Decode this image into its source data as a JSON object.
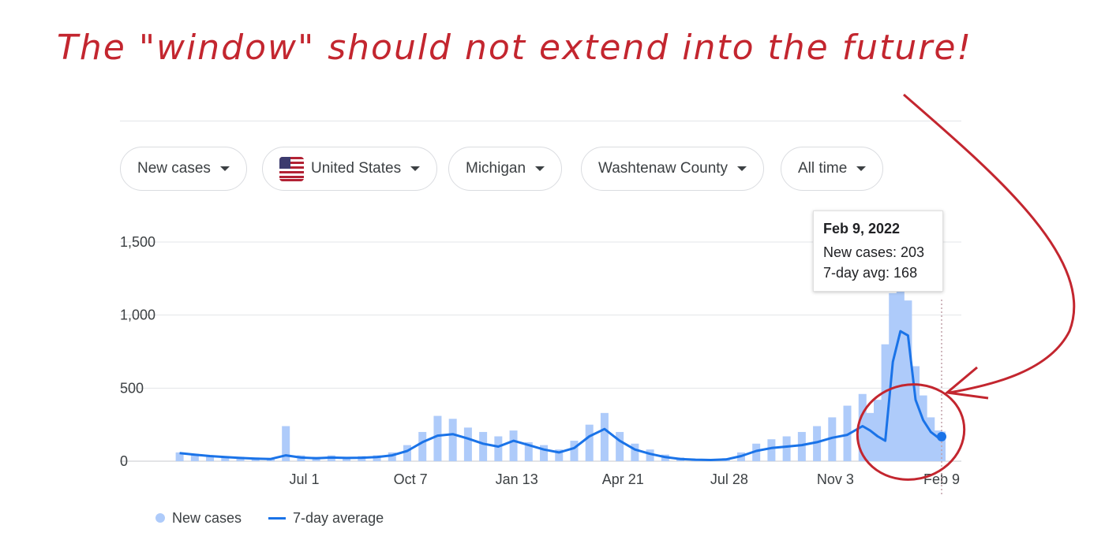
{
  "annotation": {
    "text": "The \"window\" should not extend into the future!",
    "color": "#c3262f"
  },
  "filters": [
    {
      "label": "New cases",
      "name": "filter-metric"
    },
    {
      "label": "United States",
      "name": "filter-country",
      "icon": "us-flag-icon"
    },
    {
      "label": "Michigan",
      "name": "filter-state"
    },
    {
      "label": "Washtenaw County",
      "name": "filter-county"
    },
    {
      "label": "All time",
      "name": "filter-timerange"
    }
  ],
  "tooltip": {
    "date": "Feb 9, 2022",
    "new_cases": "New cases: 203",
    "avg": "7-day avg: 168"
  },
  "legend": {
    "new_cases": "New cases",
    "avg": "7-day average"
  },
  "colors": {
    "bars": "#aecbfa",
    "line": "#1a73e8",
    "annotation": "#c3262f"
  },
  "chart_data": {
    "type": "bar",
    "title": "",
    "xlabel": "",
    "ylabel": "",
    "ylim": [
      0,
      1500
    ],
    "yticks": [
      0,
      500,
      1000,
      1500
    ],
    "ytick_labels": [
      "0",
      "500",
      "1,000",
      "1,500"
    ],
    "x_range": [
      "2020-03-01",
      "2022-02-09"
    ],
    "xticks": [
      {
        "date": "2020-07-01",
        "label": "Jul 1"
      },
      {
        "date": "2020-10-07",
        "label": "Oct 7"
      },
      {
        "date": "2021-01-13",
        "label": "Jan 13"
      },
      {
        "date": "2021-04-21",
        "label": "Apr 21"
      },
      {
        "date": "2021-07-28",
        "label": "Jul 28"
      },
      {
        "date": "2021-11-03",
        "label": "Nov 3"
      },
      {
        "date": "2022-02-09",
        "label": "Feb 9"
      }
    ],
    "grid": true,
    "legend_position": "bottom-left",
    "series": [
      {
        "name": "New cases",
        "kind": "bar",
        "x": [
          "2020-03-08",
          "2020-03-22",
          "2020-04-05",
          "2020-04-19",
          "2020-05-03",
          "2020-05-17",
          "2020-05-31",
          "2020-06-14",
          "2020-06-28",
          "2020-07-12",
          "2020-07-26",
          "2020-08-09",
          "2020-08-23",
          "2020-09-06",
          "2020-09-20",
          "2020-10-04",
          "2020-10-18",
          "2020-11-01",
          "2020-11-15",
          "2020-11-29",
          "2020-12-13",
          "2020-12-27",
          "2021-01-10",
          "2021-01-24",
          "2021-02-07",
          "2021-02-21",
          "2021-03-07",
          "2021-03-21",
          "2021-04-04",
          "2021-04-18",
          "2021-05-02",
          "2021-05-16",
          "2021-05-30",
          "2021-06-13",
          "2021-06-27",
          "2021-07-11",
          "2021-07-25",
          "2021-08-08",
          "2021-08-22",
          "2021-09-05",
          "2021-09-19",
          "2021-10-03",
          "2021-10-17",
          "2021-10-31",
          "2021-11-14",
          "2021-11-28",
          "2021-12-05",
          "2021-12-12",
          "2021-12-19",
          "2021-12-26",
          "2022-01-02",
          "2022-01-09",
          "2022-01-16",
          "2022-01-23",
          "2022-01-30",
          "2022-02-06",
          "2022-02-09"
        ],
        "values": [
          60,
          50,
          40,
          35,
          30,
          25,
          20,
          240,
          40,
          30,
          40,
          30,
          35,
          40,
          60,
          110,
          200,
          310,
          290,
          230,
          200,
          170,
          210,
          130,
          110,
          80,
          140,
          250,
          330,
          200,
          120,
          80,
          45,
          25,
          15,
          12,
          20,
          60,
          120,
          150,
          170,
          200,
          240,
          300,
          380,
          460,
          330,
          420,
          800,
          1150,
          1350,
          1100,
          650,
          450,
          300,
          210,
          203
        ]
      },
      {
        "name": "7-day average",
        "kind": "line",
        "x": [
          "2020-03-08",
          "2020-03-22",
          "2020-04-05",
          "2020-04-19",
          "2020-05-03",
          "2020-05-17",
          "2020-05-31",
          "2020-06-14",
          "2020-06-28",
          "2020-07-12",
          "2020-07-26",
          "2020-08-09",
          "2020-08-23",
          "2020-09-06",
          "2020-09-20",
          "2020-10-04",
          "2020-10-18",
          "2020-11-01",
          "2020-11-15",
          "2020-11-29",
          "2020-12-13",
          "2020-12-27",
          "2021-01-10",
          "2021-01-24",
          "2021-02-07",
          "2021-02-21",
          "2021-03-07",
          "2021-03-21",
          "2021-04-04",
          "2021-04-18",
          "2021-05-02",
          "2021-05-16",
          "2021-05-30",
          "2021-06-13",
          "2021-06-27",
          "2021-07-11",
          "2021-07-25",
          "2021-08-08",
          "2021-08-22",
          "2021-09-05",
          "2021-09-19",
          "2021-10-03",
          "2021-10-17",
          "2021-10-31",
          "2021-11-14",
          "2021-11-28",
          "2021-12-05",
          "2021-12-12",
          "2021-12-19",
          "2021-12-26",
          "2022-01-02",
          "2022-01-09",
          "2022-01-16",
          "2022-01-23",
          "2022-01-30",
          "2022-02-06",
          "2022-02-09"
        ],
        "values": [
          55,
          45,
          35,
          28,
          22,
          18,
          15,
          40,
          25,
          20,
          25,
          22,
          24,
          28,
          40,
          70,
          130,
          175,
          185,
          155,
          120,
          100,
          140,
          110,
          80,
          60,
          90,
          170,
          220,
          140,
          80,
          50,
          28,
          15,
          10,
          8,
          12,
          35,
          70,
          90,
          100,
          110,
          130,
          160,
          180,
          240,
          210,
          170,
          140,
          680,
          890,
          860,
          420,
          280,
          200,
          160,
          168
        ]
      }
    ]
  }
}
